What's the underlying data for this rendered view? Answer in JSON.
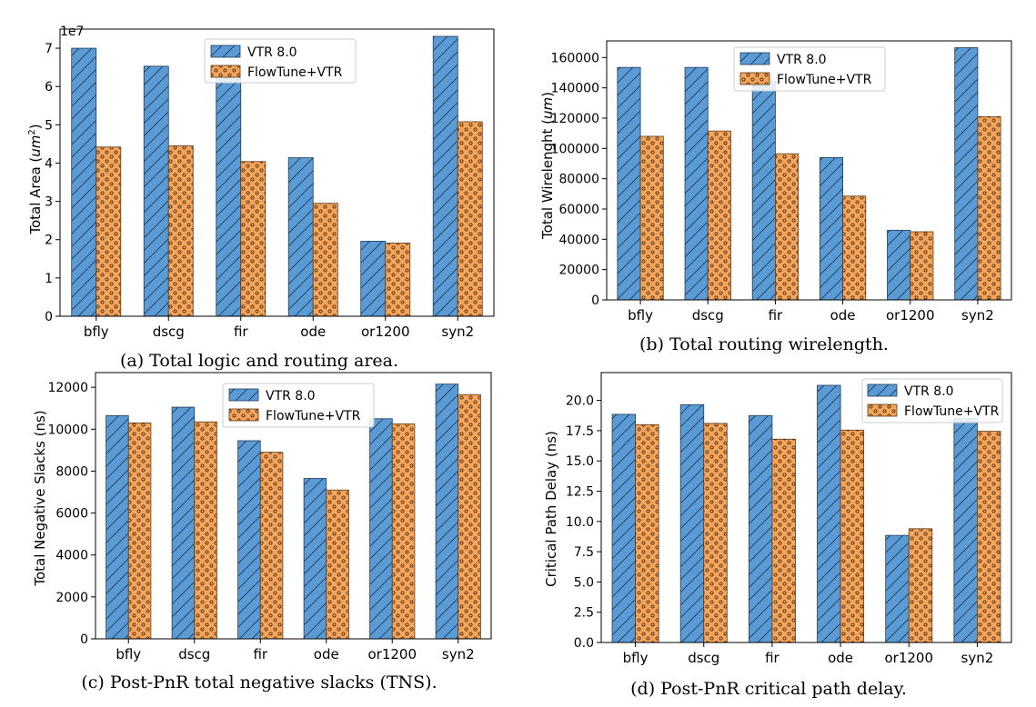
{
  "colors": {
    "vtr": "#5b9bd5",
    "vtr_stroke": "#1f3b57",
    "flowtune": "#f6a55b",
    "flowtune_stroke": "#5a3a1a"
  },
  "chart_data": [
    {
      "type": "bar",
      "caption": "(a) Total logic and routing area.",
      "ylabel_main": "Total Area (",
      "ylabel_unit": "um",
      "ylabel_sup": "2",
      "ylabel_tail": ")",
      "offset_text": "1e7",
      "categories": [
        "bfly",
        "dscg",
        "fir",
        "ode",
        "or1200",
        "syn2"
      ],
      "ylim": [
        0,
        7.5
      ],
      "yticks": [
        0,
        1,
        2,
        3,
        4,
        5,
        6,
        7
      ],
      "ytick_labels": [
        "0",
        "1",
        "2",
        "3",
        "4",
        "5",
        "6",
        "7"
      ],
      "series": [
        {
          "name": "VTR 8.0",
          "values": [
            7.0,
            6.53,
            6.27,
            4.14,
            1.96,
            7.31
          ]
        },
        {
          "name": "FlowTune+VTR",
          "values": [
            4.42,
            4.45,
            4.04,
            2.95,
            1.91,
            5.08
          ]
        }
      ],
      "legend": "top-center"
    },
    {
      "type": "bar",
      "caption": "(b) Total routing wirelength.",
      "ylabel_main": "Total Wirelenght (",
      "ylabel_unit": "um",
      "ylabel_sup": "",
      "ylabel_tail": ")",
      "offset_text": "",
      "categories": [
        "bfly",
        "dscg",
        "fir",
        "ode",
        "or1200",
        "syn2"
      ],
      "ylim": [
        0,
        171000
      ],
      "yticks": [
        0,
        20000,
        40000,
        60000,
        80000,
        100000,
        120000,
        140000,
        160000
      ],
      "ytick_labels": [
        "0",
        "20000",
        "40000",
        "60000",
        "80000",
        "100000",
        "120000",
        "140000",
        "160000"
      ],
      "series": [
        {
          "name": "VTR 8.0",
          "values": [
            153500,
            153500,
            144500,
            94000,
            46000,
            166500
          ]
        },
        {
          "name": "FlowTune+VTR",
          "values": [
            108000,
            111500,
            96500,
            68500,
            45000,
            121000
          ]
        }
      ],
      "legend": "top-center"
    },
    {
      "type": "bar",
      "caption": "(c) Post-PnR total negative slacks (TNS).",
      "ylabel_main": "Total Negative Slacks (ns)",
      "ylabel_unit": "",
      "ylabel_sup": "",
      "ylabel_tail": "",
      "offset_text": "",
      "categories": [
        "bfly",
        "dscg",
        "fir",
        "ode",
        "or1200",
        "syn2"
      ],
      "ylim": [
        0,
        12700
      ],
      "yticks": [
        0,
        2000,
        4000,
        6000,
        8000,
        10000,
        12000
      ],
      "ytick_labels": [
        "0",
        "2000",
        "4000",
        "6000",
        "8000",
        "10000",
        "12000"
      ],
      "series": [
        {
          "name": "VTR 8.0",
          "values": [
            10650,
            11050,
            9450,
            7650,
            10500,
            12150
          ]
        },
        {
          "name": "FlowTune+VTR",
          "values": [
            10300,
            10350,
            8900,
            7100,
            10250,
            11650
          ]
        }
      ],
      "legend": "top-center"
    },
    {
      "type": "bar",
      "caption": "(d) Post-PnR critical path delay.",
      "ylabel_main": "Critical Path Delay (ns)",
      "ylabel_unit": "",
      "ylabel_sup": "",
      "ylabel_tail": "",
      "offset_text": "",
      "categories": [
        "bfly",
        "dscg",
        "fir",
        "ode",
        "or1200",
        "syn2"
      ],
      "ylim": [
        0,
        22.3
      ],
      "yticks": [
        0,
        2.5,
        5,
        7.5,
        10,
        12.5,
        15,
        17.5,
        20
      ],
      "ytick_labels": [
        "0.0",
        "2.5",
        "5.0",
        "7.5",
        "10.0",
        "12.5",
        "15.0",
        "17.5",
        "20.0"
      ],
      "series": [
        {
          "name": "VTR 8.0",
          "values": [
            18.85,
            19.65,
            18.75,
            21.25,
            8.85,
            18.5
          ]
        },
        {
          "name": "FlowTune+VTR",
          "values": [
            18.0,
            18.1,
            16.8,
            17.55,
            9.4,
            17.45
          ]
        }
      ],
      "legend": "top-right"
    }
  ]
}
